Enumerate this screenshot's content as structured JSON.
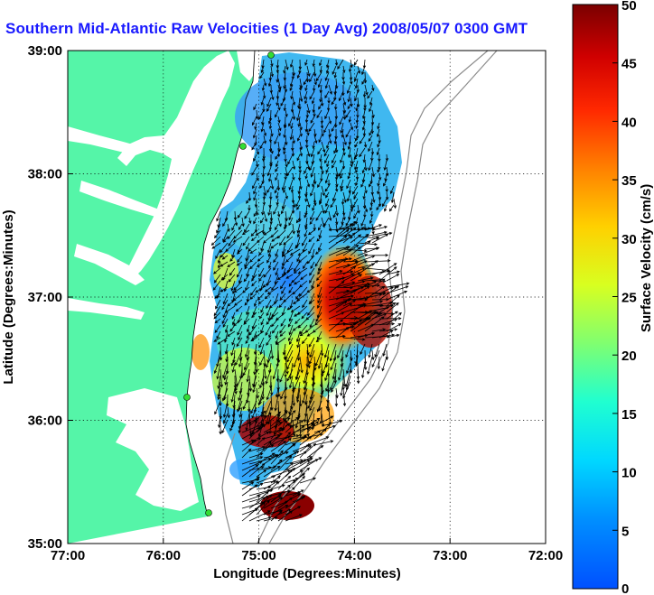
{
  "title": "Southern Mid-Atlantic Raw Velocities (1 Day Avg) 2008/05/07 0300 GMT",
  "map": {
    "xlabel": "Longitude (Degrees:Minutes)",
    "ylabel": "Latitude (Degrees:Minutes)",
    "x_ticks": [
      "77:00",
      "76:00",
      "75:00",
      "74:00",
      "73:00",
      "72:00"
    ],
    "y_ticks": [
      "39:00",
      "38:00",
      "37:00",
      "36:00",
      "35:00"
    ],
    "grid": "dotted"
  },
  "colorbar": {
    "label": "Surface Velocity (cm/s)",
    "ticks": [
      "0",
      "5",
      "10",
      "15",
      "20",
      "25",
      "30",
      "35",
      "40",
      "45",
      "50"
    ],
    "range": [
      0,
      50
    ],
    "colormap": "jet"
  },
  "colors": {
    "land": "#55f5a8",
    "title_text": "#1a1aff",
    "station_marker": "#33dd33",
    "arrows": "#000000"
  }
}
